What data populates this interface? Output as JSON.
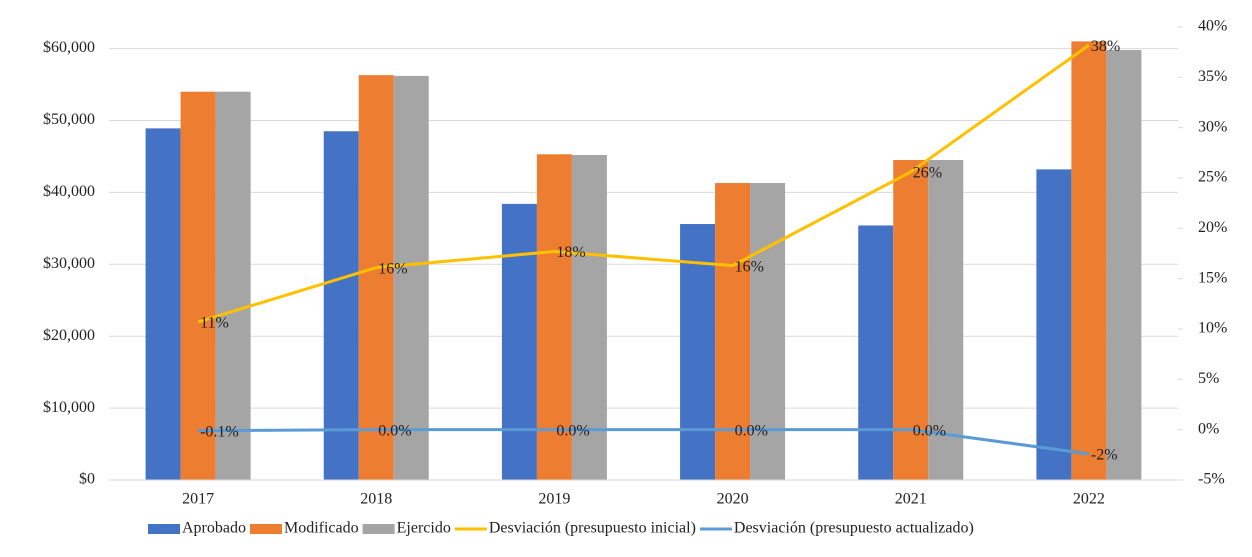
{
  "chart_data": {
    "type": "bar",
    "categories": [
      "2017",
      "2018",
      "2019",
      "2020",
      "2021",
      "2022"
    ],
    "series": [
      {
        "name": "Aprobado",
        "color": "#4472c4",
        "values": [
          48900,
          48500,
          38400,
          35600,
          35400,
          43200
        ]
      },
      {
        "name": "Modificado",
        "color": "#ed7d31",
        "values": [
          54000,
          56300,
          45300,
          41300,
          44500,
          61000
        ]
      },
      {
        "name": "Ejercido",
        "color": "#a5a5a5",
        "values": [
          54000,
          56200,
          45200,
          41300,
          44500,
          59800
        ]
      },
      {
        "name": "Desviación (presupuesto inicial)",
        "type": "line",
        "axis": "y2",
        "color": "#ffc000",
        "values": [
          10.7,
          16.1,
          17.7,
          16.3,
          25.6,
          38.2
        ],
        "value_labels": [
          "11%",
          "16%",
          "18%",
          "16%",
          "26%",
          "38%"
        ]
      },
      {
        "name": "Desviación (presupuesto actualizado)",
        "type": "line",
        "axis": "y2",
        "color": "#5b9bd5",
        "values": [
          -0.1,
          0.0,
          0.0,
          0.0,
          0.0,
          -2.4
        ],
        "value_labels": [
          "-0.1%",
          "0.0%",
          "0.0%",
          "0.0%",
          "0.0%",
          "-2%"
        ]
      }
    ],
    "ylim": [
      0,
      63000
    ],
    "yticks": [
      {
        "value": 0,
        "label": "$0"
      },
      {
        "value": 10000,
        "label": "$10,000"
      },
      {
        "value": 20000,
        "label": "$20,000"
      },
      {
        "value": 30000,
        "label": "$30,000"
      },
      {
        "value": 40000,
        "label": "$40,000"
      },
      {
        "value": 50000,
        "label": "$50,000"
      },
      {
        "value": 60000,
        "label": "$60,000"
      }
    ],
    "y2lim": [
      -5,
      40
    ],
    "y2ticks": [
      {
        "value": -5,
        "label": "-5%"
      },
      {
        "value": 0,
        "label": "0%"
      },
      {
        "value": 5,
        "label": "5%"
      },
      {
        "value": 10,
        "label": "10%"
      },
      {
        "value": 15,
        "label": "15%"
      },
      {
        "value": 20,
        "label": "20%"
      },
      {
        "value": 25,
        "label": "25%"
      },
      {
        "value": 30,
        "label": "30%"
      },
      {
        "value": 35,
        "label": "35%"
      },
      {
        "value": 40,
        "label": "40%"
      }
    ],
    "grid": true,
    "legend": "bottom"
  }
}
